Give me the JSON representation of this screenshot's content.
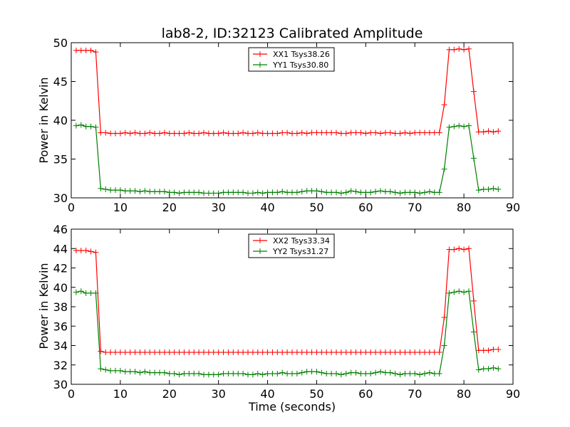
{
  "chart_data": [
    {
      "type": "line",
      "title": "lab8-2, ID:32123 Calibrated Amplitude",
      "xlabel": "",
      "ylabel": "Power in Kelvin",
      "xlim": [
        0,
        90
      ],
      "ylim": [
        30,
        50
      ],
      "xticks": [
        "0",
        "10",
        "20",
        "30",
        "40",
        "50",
        "60",
        "70",
        "80",
        "90"
      ],
      "yticks": [
        "30",
        "35",
        "40",
        "45",
        "50"
      ],
      "grid": false,
      "legend": "top-center",
      "marker": "plus",
      "series": [
        {
          "name": "XX1 Tsys38.26",
          "color": "#ff0000",
          "x": [
            1,
            2,
            3,
            4,
            5,
            6,
            7,
            8,
            9,
            10,
            11,
            12,
            13,
            14,
            15,
            16,
            17,
            18,
            19,
            20,
            21,
            22,
            23,
            24,
            25,
            26,
            27,
            28,
            29,
            30,
            31,
            32,
            33,
            34,
            35,
            36,
            37,
            38,
            39,
            40,
            41,
            42,
            43,
            44,
            45,
            46,
            47,
            48,
            49,
            50,
            51,
            52,
            53,
            54,
            55,
            56,
            57,
            58,
            59,
            60,
            61,
            62,
            63,
            64,
            65,
            66,
            67,
            68,
            69,
            70,
            71,
            72,
            73,
            74,
            75,
            76,
            77,
            78,
            79,
            80,
            81,
            82,
            83,
            84,
            85,
            86,
            87
          ],
          "y": [
            49.0,
            49.0,
            49.0,
            49.0,
            48.8,
            38.4,
            38.4,
            38.3,
            38.3,
            38.3,
            38.4,
            38.3,
            38.4,
            38.3,
            38.3,
            38.4,
            38.3,
            38.3,
            38.4,
            38.3,
            38.3,
            38.3,
            38.3,
            38.4,
            38.3,
            38.3,
            38.4,
            38.3,
            38.3,
            38.3,
            38.4,
            38.3,
            38.3,
            38.3,
            38.4,
            38.3,
            38.3,
            38.4,
            38.3,
            38.3,
            38.3,
            38.3,
            38.4,
            38.4,
            38.3,
            38.3,
            38.4,
            38.3,
            38.4,
            38.4,
            38.4,
            38.4,
            38.4,
            38.4,
            38.3,
            38.3,
            38.4,
            38.4,
            38.4,
            38.3,
            38.4,
            38.4,
            38.3,
            38.4,
            38.4,
            38.3,
            38.3,
            38.4,
            38.3,
            38.4,
            38.4,
            38.4,
            38.4,
            38.4,
            38.4,
            42.0,
            49.1,
            49.1,
            49.2,
            49.1,
            49.2,
            43.7,
            38.5,
            38.5,
            38.6,
            38.5,
            38.6
          ]
        },
        {
          "name": "YY1 Tsys30.80",
          "color": "#008000",
          "x": [
            1,
            2,
            3,
            4,
            5,
            6,
            7,
            8,
            9,
            10,
            11,
            12,
            13,
            14,
            15,
            16,
            17,
            18,
            19,
            20,
            21,
            22,
            23,
            24,
            25,
            26,
            27,
            28,
            29,
            30,
            31,
            32,
            33,
            34,
            35,
            36,
            37,
            38,
            39,
            40,
            41,
            42,
            43,
            44,
            45,
            46,
            47,
            48,
            49,
            50,
            51,
            52,
            53,
            54,
            55,
            56,
            57,
            58,
            59,
            60,
            61,
            62,
            63,
            64,
            65,
            66,
            67,
            68,
            69,
            70,
            71,
            72,
            73,
            74,
            75,
            76,
            77,
            78,
            79,
            80,
            81,
            82,
            83,
            84,
            85,
            86,
            87
          ],
          "y": [
            39.3,
            39.4,
            39.2,
            39.2,
            39.1,
            31.2,
            31.1,
            31.0,
            31.0,
            31.0,
            30.9,
            30.9,
            30.9,
            30.8,
            30.9,
            30.8,
            30.8,
            30.8,
            30.8,
            30.7,
            30.7,
            30.6,
            30.7,
            30.7,
            30.7,
            30.7,
            30.6,
            30.6,
            30.6,
            30.6,
            30.7,
            30.7,
            30.7,
            30.7,
            30.7,
            30.6,
            30.6,
            30.7,
            30.6,
            30.7,
            30.7,
            30.7,
            30.8,
            30.7,
            30.7,
            30.7,
            30.8,
            30.9,
            30.9,
            30.9,
            30.8,
            30.7,
            30.7,
            30.7,
            30.6,
            30.7,
            30.9,
            30.8,
            30.7,
            30.7,
            30.7,
            30.8,
            30.9,
            30.8,
            30.8,
            30.7,
            30.6,
            30.7,
            30.7,
            30.7,
            30.6,
            30.7,
            30.8,
            30.7,
            30.7,
            33.7,
            39.1,
            39.2,
            39.3,
            39.2,
            39.3,
            35.1,
            31.0,
            31.1,
            31.1,
            31.2,
            31.1
          ]
        }
      ]
    },
    {
      "type": "line",
      "title": "",
      "xlabel": "Time (seconds)",
      "ylabel": "Power in Kelvin",
      "xlim": [
        0,
        90
      ],
      "ylim": [
        30,
        46
      ],
      "xticks": [
        "0",
        "10",
        "20",
        "30",
        "40",
        "50",
        "60",
        "70",
        "80",
        "90"
      ],
      "yticks": [
        "30",
        "32",
        "34",
        "36",
        "38",
        "40",
        "42",
        "44",
        "46"
      ],
      "grid": false,
      "legend": "top-center",
      "marker": "plus",
      "series": [
        {
          "name": "XX2 Tsys33.34",
          "color": "#ff0000",
          "x": [
            1,
            2,
            3,
            4,
            5,
            6,
            7,
            8,
            9,
            10,
            11,
            12,
            13,
            14,
            15,
            16,
            17,
            18,
            19,
            20,
            21,
            22,
            23,
            24,
            25,
            26,
            27,
            28,
            29,
            30,
            31,
            32,
            33,
            34,
            35,
            36,
            37,
            38,
            39,
            40,
            41,
            42,
            43,
            44,
            45,
            46,
            47,
            48,
            49,
            50,
            51,
            52,
            53,
            54,
            55,
            56,
            57,
            58,
            59,
            60,
            61,
            62,
            63,
            64,
            65,
            66,
            67,
            68,
            69,
            70,
            71,
            72,
            73,
            74,
            75,
            76,
            77,
            78,
            79,
            80,
            81,
            82,
            83,
            84,
            85,
            86,
            87
          ],
          "y": [
            43.8,
            43.8,
            43.8,
            43.7,
            43.6,
            33.4,
            33.3,
            33.3,
            33.3,
            33.3,
            33.3,
            33.3,
            33.3,
            33.3,
            33.3,
            33.3,
            33.3,
            33.3,
            33.3,
            33.3,
            33.3,
            33.3,
            33.3,
            33.3,
            33.3,
            33.3,
            33.3,
            33.3,
            33.3,
            33.3,
            33.3,
            33.3,
            33.3,
            33.3,
            33.3,
            33.3,
            33.3,
            33.3,
            33.3,
            33.3,
            33.3,
            33.3,
            33.3,
            33.3,
            33.3,
            33.3,
            33.3,
            33.3,
            33.3,
            33.3,
            33.3,
            33.3,
            33.3,
            33.3,
            33.3,
            33.3,
            33.3,
            33.3,
            33.3,
            33.3,
            33.3,
            33.3,
            33.3,
            33.3,
            33.3,
            33.3,
            33.3,
            33.3,
            33.3,
            33.3,
            33.3,
            33.3,
            33.3,
            33.3,
            33.3,
            36.9,
            43.9,
            43.9,
            44.0,
            43.9,
            44.0,
            38.6,
            33.5,
            33.5,
            33.5,
            33.6,
            33.6
          ]
        },
        {
          "name": "YY2 Tsys31.27",
          "color": "#008000",
          "x": [
            1,
            2,
            3,
            4,
            5,
            6,
            7,
            8,
            9,
            10,
            11,
            12,
            13,
            14,
            15,
            16,
            17,
            18,
            19,
            20,
            21,
            22,
            23,
            24,
            25,
            26,
            27,
            28,
            29,
            30,
            31,
            32,
            33,
            34,
            35,
            36,
            37,
            38,
            39,
            40,
            41,
            42,
            43,
            44,
            45,
            46,
            47,
            48,
            49,
            50,
            51,
            52,
            53,
            54,
            55,
            56,
            57,
            58,
            59,
            60,
            61,
            62,
            63,
            64,
            65,
            66,
            67,
            68,
            69,
            70,
            71,
            72,
            73,
            74,
            75,
            76,
            77,
            78,
            79,
            80,
            81,
            82,
            83,
            84,
            85,
            86,
            87
          ],
          "y": [
            39.5,
            39.6,
            39.4,
            39.4,
            39.4,
            31.6,
            31.5,
            31.4,
            31.4,
            31.4,
            31.3,
            31.3,
            31.3,
            31.2,
            31.3,
            31.2,
            31.2,
            31.2,
            31.2,
            31.1,
            31.1,
            31.0,
            31.1,
            31.1,
            31.1,
            31.1,
            31.0,
            31.0,
            31.0,
            31.0,
            31.1,
            31.1,
            31.1,
            31.1,
            31.1,
            31.0,
            31.0,
            31.1,
            31.0,
            31.1,
            31.1,
            31.1,
            31.2,
            31.1,
            31.1,
            31.1,
            31.2,
            31.3,
            31.3,
            31.3,
            31.2,
            31.1,
            31.1,
            31.1,
            31.0,
            31.1,
            31.2,
            31.2,
            31.1,
            31.1,
            31.1,
            31.2,
            31.3,
            31.2,
            31.2,
            31.1,
            31.0,
            31.1,
            31.1,
            31.1,
            31.0,
            31.1,
            31.2,
            31.1,
            31.1,
            34.0,
            39.4,
            39.5,
            39.6,
            39.5,
            39.6,
            35.4,
            31.5,
            31.6,
            31.6,
            31.7,
            31.6
          ]
        }
      ]
    }
  ]
}
